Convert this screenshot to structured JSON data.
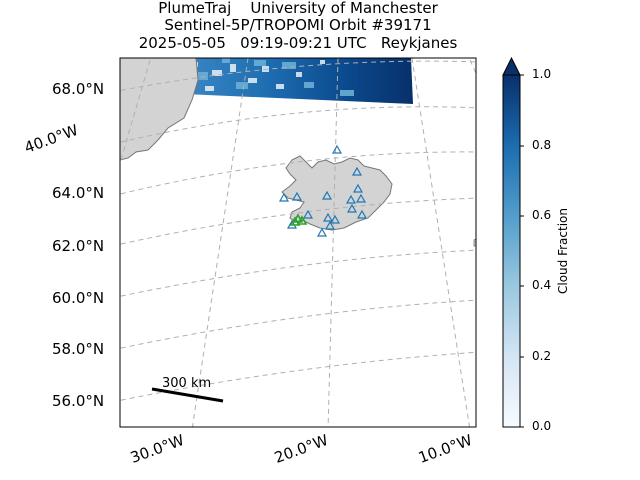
{
  "title": {
    "line1": "PlumeTraj    University of Manchester",
    "line2": "Sentinel-5P/TROPOMI Orbit #39171",
    "line3": "2025-05-05   09:19-09:21 UTC   Reykjanes"
  },
  "map": {
    "lat_labels": [
      "68.0°N",
      "64.0°N",
      "62.0°N",
      "60.0°N",
      "58.0°N",
      "56.0°N"
    ],
    "lon_labels_bottom": [
      "30.0°W",
      "20.0°W",
      "10.0°W"
    ],
    "lon_label_left": "40.0°W",
    "scale_bar_label": "300 km",
    "gridlines": true,
    "land_color": "#d3d3d3",
    "coast_color": "#777777",
    "grid_color": "#b0b0b0"
  },
  "colorbar": {
    "label": "Cloud Fraction",
    "ticks": [
      "0.0",
      "0.2",
      "0.4",
      "0.6",
      "0.8",
      "1.0"
    ],
    "range": [
      0.0,
      1.0
    ],
    "colormap": "Blues",
    "extend": "max"
  },
  "markers": {
    "volcano_symbol": "triangle-icon",
    "volcano_color": "#1f77b4",
    "source_color": "#2ca02c"
  }
}
